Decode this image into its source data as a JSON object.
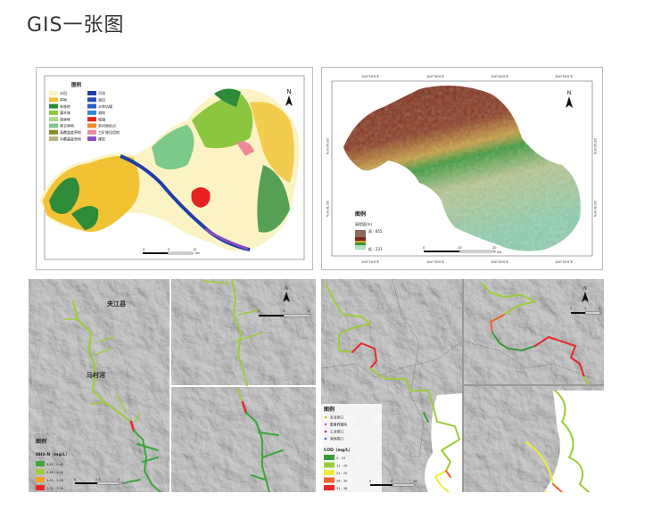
{
  "page": {
    "title": "GIS一张图"
  },
  "landuse_map": {
    "legend_title": "图例",
    "legend_left": [
      {
        "label": "水田",
        "color": "#fbf3c4"
      },
      {
        "label": "旱地",
        "color": "#f1c232"
      },
      {
        "label": "有林地",
        "color": "#2e8b3a"
      },
      {
        "label": "灌木林",
        "color": "#8cc63f"
      },
      {
        "label": "疏林地",
        "color": "#a8d88a"
      },
      {
        "label": "其它林地",
        "color": "#7cc98a"
      },
      {
        "label": "高覆盖度草地",
        "color": "#8a8a2e"
      },
      {
        "label": "中覆盖度草地",
        "color": "#b8b07a"
      }
    ],
    "legend_right": [
      {
        "label": "河流",
        "color": "#1f3fa8"
      },
      {
        "label": "湖泊",
        "color": "#2a4eb0"
      },
      {
        "label": "水库坑塘",
        "color": "#2e5fc0"
      },
      {
        "label": "滩地",
        "color": "#3a86d0"
      },
      {
        "label": "城镇",
        "color": "#e82020"
      },
      {
        "label": "农村居民点",
        "color": "#f08a2a"
      },
      {
        "label": "工矿建设用地",
        "color": "#ec8a9a"
      },
      {
        "label": "裸岩",
        "color": "#8a4ec0"
      }
    ],
    "north": "N",
    "scale": [
      "0",
      "5",
      "10"
    ],
    "scale_unit": "km"
  },
  "dem_map": {
    "legend_title": "图例",
    "legend_subtitle": "高程值(m)",
    "high_label": "高 : 855",
    "low_label": "低 : 233",
    "north": "N",
    "scale": [
      "0",
      "10",
      "20"
    ],
    "scale_unit": "km",
    "lon_ticks": [
      "104°20'0\"E",
      "104°30'0\"E",
      "104°40'0\"E",
      "104°50'0\"E"
    ],
    "lat_ticks": [
      "29°40'0\"N",
      "29°30'0\"N"
    ]
  },
  "nh3_map": {
    "place_1": "夹江县",
    "place_2": "马村河",
    "legend_title": "图例",
    "legend_subtitle": "NH3-N（mg/L）",
    "classes": [
      {
        "label": "0.23 - 0.45",
        "color": "#3aa63a"
      },
      {
        "label": "0.46 - 1.00",
        "color": "#9ccc3c"
      },
      {
        "label": "1.01 - 2.00",
        "color": "#f5a020"
      },
      {
        "label": "2.01 - 3.00",
        "color": "#e82828"
      }
    ],
    "scale": [
      "0",
      "2.5",
      "5"
    ],
    "inset_scale": [
      "0",
      "2",
      "4"
    ],
    "scale_unit": "km",
    "north": "N"
  },
  "cod_map": {
    "legend_title": "图例",
    "points": [
      {
        "label": "农业排口",
        "color": "#d8c020"
      },
      {
        "label": "畜禽养殖场",
        "color": "#c060c0"
      },
      {
        "label": "工业排口",
        "color": "#a03080"
      },
      {
        "label": "其他排口",
        "color": "#2a6ad0"
      }
    ],
    "legend_subtitle": "COD（mg/L）",
    "classes": [
      {
        "label": "5 - 10",
        "color": "#3a9a3a"
      },
      {
        "label": "11 - 20",
        "color": "#9ccc3c"
      },
      {
        "label": "21 - 25",
        "color": "#ecec3c"
      },
      {
        "label": "26 - 30",
        "color": "#f06030"
      },
      {
        "label": "31 - 36",
        "color": "#e82828"
      }
    ],
    "scale": [
      "0",
      "5",
      "10"
    ],
    "inset_scale": [
      "0",
      "1",
      "2"
    ],
    "scale_unit": "km",
    "north": "N"
  }
}
